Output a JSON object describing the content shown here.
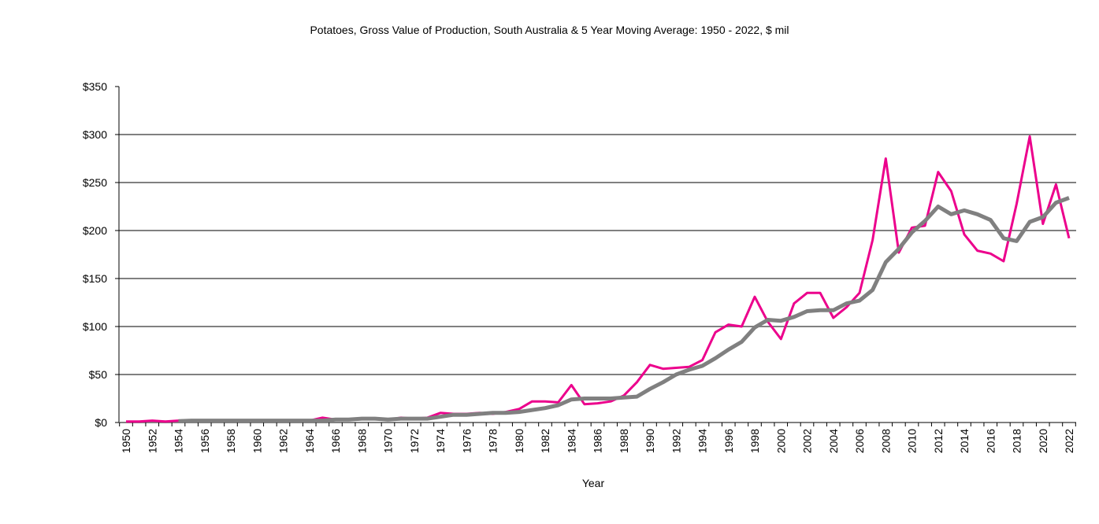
{
  "chart_data": {
    "type": "line",
    "title": "Potatoes, Gross Value of Production, South Australia & 5 Year Moving Average: 1950 - 2022, $ mil",
    "xlabel": "Year",
    "ylabel": "",
    "ylim": [
      0,
      350
    ],
    "yticks": [
      0,
      50,
      100,
      150,
      200,
      250,
      300,
      350
    ],
    "ytick_labels": [
      "$0",
      "$50",
      "$100",
      "$150",
      "$200",
      "$250",
      "$300",
      "$350"
    ],
    "x_label_step": 2,
    "grid": true,
    "legend": "none",
    "x": [
      1950,
      1951,
      1952,
      1953,
      1954,
      1955,
      1956,
      1957,
      1958,
      1959,
      1960,
      1961,
      1962,
      1963,
      1964,
      1965,
      1966,
      1967,
      1968,
      1969,
      1970,
      1971,
      1972,
      1973,
      1974,
      1975,
      1976,
      1977,
      1978,
      1979,
      1980,
      1981,
      1982,
      1983,
      1984,
      1985,
      1986,
      1987,
      1988,
      1989,
      1990,
      1991,
      1992,
      1993,
      1994,
      1995,
      1996,
      1997,
      1998,
      1999,
      2000,
      2001,
      2002,
      2003,
      2004,
      2005,
      2006,
      2007,
      2008,
      2009,
      2010,
      2011,
      2012,
      2013,
      2014,
      2015,
      2016,
      2017,
      2018,
      2019,
      2020,
      2021,
      2022
    ],
    "series": [
      {
        "name": "Gross Value of Production",
        "color": "#ec008c",
        "values": [
          1,
          1,
          2,
          1,
          2,
          2,
          2,
          2,
          2,
          2,
          2,
          2,
          2,
          2,
          2,
          5,
          3,
          3,
          4,
          4,
          3,
          5,
          4,
          5,
          10,
          9,
          9,
          10,
          9,
          11,
          14,
          22,
          22,
          21,
          39,
          19,
          20,
          22,
          28,
          42,
          60,
          56,
          57,
          58,
          65,
          94,
          102,
          100,
          131,
          105,
          87,
          124,
          135,
          135,
          109,
          120,
          135,
          190,
          275,
          177,
          203,
          205,
          261,
          241,
          196,
          179,
          176,
          168,
          228,
          298,
          207,
          248,
          192
        ]
      },
      {
        "name": "5 Year Moving Average",
        "color": "#808080",
        "values": [
          null,
          null,
          null,
          null,
          1.5,
          2,
          2,
          2,
          2,
          2,
          2,
          2,
          2,
          2,
          2,
          2,
          3,
          3,
          4,
          4,
          3,
          4,
          4,
          4,
          6,
          8,
          8,
          9,
          10,
          10,
          11,
          13,
          15,
          18,
          24,
          25,
          25,
          25,
          26,
          27,
          35,
          42,
          50,
          55,
          59,
          67,
          76,
          84,
          99,
          107,
          106,
          110,
          116,
          117,
          117,
          124,
          127,
          138,
          167,
          181,
          198,
          210,
          225,
          217,
          221,
          217,
          211,
          192,
          189,
          209,
          214,
          229,
          234
        ]
      }
    ]
  }
}
